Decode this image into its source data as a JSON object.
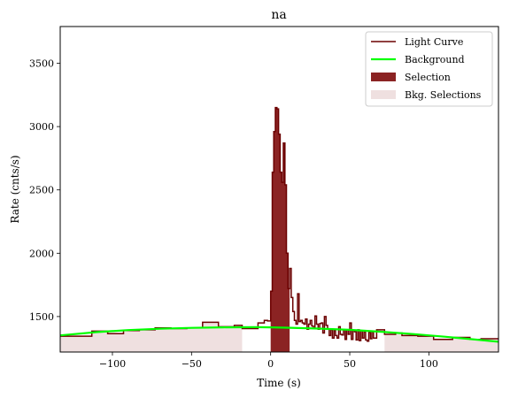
{
  "chart_data": {
    "type": "line",
    "title": "na",
    "xlabel": "Time (s)",
    "ylabel": "Rate (cnts/s)",
    "xlim": [
      -133,
      144
    ],
    "ylim": [
      1220,
      3790
    ],
    "xticks": [
      -100,
      -50,
      0,
      50,
      100
    ],
    "yticks": [
      1500,
      2000,
      2500,
      3000,
      3500
    ],
    "grid": false,
    "legend_position": "top-right",
    "legend": [
      {
        "label": "Light Curve",
        "kind": "line",
        "color": "#6b0000"
      },
      {
        "label": "Background",
        "kind": "line",
        "color": "#00ff00"
      },
      {
        "label": "Selection",
        "kind": "patch",
        "color": "#8b2323"
      },
      {
        "label": "Bkg. Selections",
        "kind": "patch",
        "color": "#efe0e0"
      }
    ],
    "series": [
      {
        "name": "Light Curve",
        "color": "#6b0000",
        "style": "step",
        "points": [
          [
            -133,
            1345
          ],
          [
            -113,
            1385
          ],
          [
            -103,
            1365
          ],
          [
            -93,
            1390
          ],
          [
            -83,
            1395
          ],
          [
            -73,
            1410
          ],
          [
            -63,
            1405
          ],
          [
            -53,
            1410
          ],
          [
            -43,
            1455
          ],
          [
            -33,
            1420
          ],
          [
            -23,
            1430
          ],
          [
            -18,
            1405
          ],
          [
            -8,
            1450
          ],
          [
            -4,
            1470
          ],
          [
            -2,
            1465
          ],
          [
            0,
            1700
          ],
          [
            1,
            2640
          ],
          [
            2,
            2960
          ],
          [
            3,
            3150
          ],
          [
            4,
            3140
          ],
          [
            5,
            2940
          ],
          [
            6,
            2640
          ],
          [
            7,
            2560
          ],
          [
            8,
            2870
          ],
          [
            9,
            2540
          ],
          [
            10,
            2000
          ],
          [
            11,
            1720
          ],
          [
            12,
            1880
          ],
          [
            13,
            1650
          ],
          [
            14,
            1540
          ],
          [
            15,
            1470
          ],
          [
            16,
            1440
          ],
          [
            17,
            1680
          ],
          [
            18,
            1460
          ],
          [
            19,
            1470
          ],
          [
            20,
            1450
          ],
          [
            21,
            1440
          ],
          [
            22,
            1480
          ],
          [
            23,
            1400
          ],
          [
            24,
            1440
          ],
          [
            25,
            1470
          ],
          [
            26,
            1425
          ],
          [
            27,
            1405
          ],
          [
            28,
            1505
          ],
          [
            29,
            1440
          ],
          [
            30,
            1400
          ],
          [
            31,
            1445
          ],
          [
            32,
            1450
          ],
          [
            33,
            1370
          ],
          [
            34,
            1500
          ],
          [
            35,
            1430
          ],
          [
            36,
            1400
          ],
          [
            37,
            1350
          ],
          [
            38,
            1395
          ],
          [
            39,
            1330
          ],
          [
            40,
            1390
          ],
          [
            41,
            1350
          ],
          [
            42,
            1330
          ],
          [
            43,
            1420
          ],
          [
            44,
            1360
          ],
          [
            45,
            1355
          ],
          [
            46,
            1395
          ],
          [
            47,
            1320
          ],
          [
            48,
            1395
          ],
          [
            49,
            1360
          ],
          [
            50,
            1450
          ],
          [
            51,
            1320
          ],
          [
            52,
            1390
          ],
          [
            53,
            1380
          ],
          [
            54,
            1315
          ],
          [
            55,
            1395
          ],
          [
            56,
            1310
          ],
          [
            57,
            1390
          ],
          [
            58,
            1330
          ],
          [
            59,
            1380
          ],
          [
            60,
            1315
          ],
          [
            61,
            1305
          ],
          [
            62,
            1375
          ],
          [
            63,
            1325
          ],
          [
            64,
            1380
          ],
          [
            65,
            1330
          ],
          [
            67,
            1395
          ],
          [
            72,
            1360
          ],
          [
            79,
            1370
          ],
          [
            83,
            1350
          ],
          [
            93,
            1345
          ],
          [
            103,
            1320
          ],
          [
            115,
            1335
          ],
          [
            126,
            1320
          ],
          [
            133,
            1325
          ],
          [
            144,
            1325
          ]
        ]
      },
      {
        "name": "Background",
        "color": "#00ff00",
        "points": [
          [
            -133,
            1351
          ],
          [
            -110,
            1377
          ],
          [
            -90,
            1393
          ],
          [
            -70,
            1404
          ],
          [
            -50,
            1411
          ],
          [
            -30,
            1415
          ],
          [
            -10,
            1416
          ],
          [
            0,
            1415
          ],
          [
            10,
            1412
          ],
          [
            30,
            1405
          ],
          [
            50,
            1395
          ],
          [
            70,
            1380
          ],
          [
            90,
            1362
          ],
          [
            110,
            1341
          ],
          [
            130,
            1318
          ],
          [
            144,
            1301
          ]
        ]
      }
    ],
    "selection": [
      0,
      12
    ],
    "bkg_selections": [
      [
        -133,
        -18
      ],
      [
        72,
        144
      ]
    ]
  }
}
